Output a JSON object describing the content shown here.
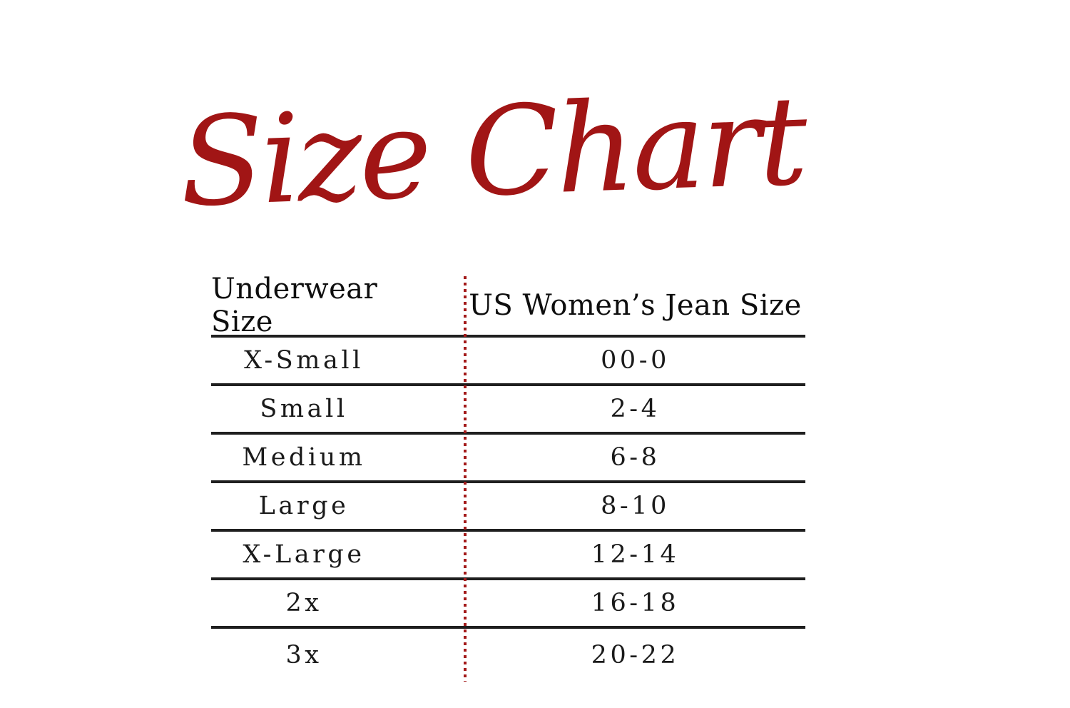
{
  "title": {
    "text": "Size Chart",
    "color": "#A11515"
  },
  "table": {
    "columns": [
      {
        "label": "Underwear Size"
      },
      {
        "label": "US Women’s Jean Size"
      }
    ],
    "rows": [
      {
        "underwear_size": "X-Small",
        "jean_size": "00-0"
      },
      {
        "underwear_size": "Small",
        "jean_size": "2-4"
      },
      {
        "underwear_size": "Medium",
        "jean_size": "6-8"
      },
      {
        "underwear_size": "Large",
        "jean_size": "8-10"
      },
      {
        "underwear_size": "X-Large",
        "jean_size": "12-14"
      },
      {
        "underwear_size": "2x",
        "jean_size": "16-18"
      },
      {
        "underwear_size": "3x",
        "jean_size": "20-22"
      }
    ],
    "row_line_color": "#1F1F1F",
    "divider_color": "#A31A1A"
  },
  "chart_data": {
    "type": "table",
    "title": "Size Chart",
    "columns": [
      "Underwear Size",
      "US Women’s Jean Size"
    ],
    "rows": [
      [
        "X-Small",
        "00-0"
      ],
      [
        "Small",
        "2-4"
      ],
      [
        "Medium",
        "6-8"
      ],
      [
        "Large",
        "8-10"
      ],
      [
        "X-Large",
        "12-14"
      ],
      [
        "2x",
        "16-18"
      ],
      [
        "3x",
        "20-22"
      ]
    ]
  }
}
